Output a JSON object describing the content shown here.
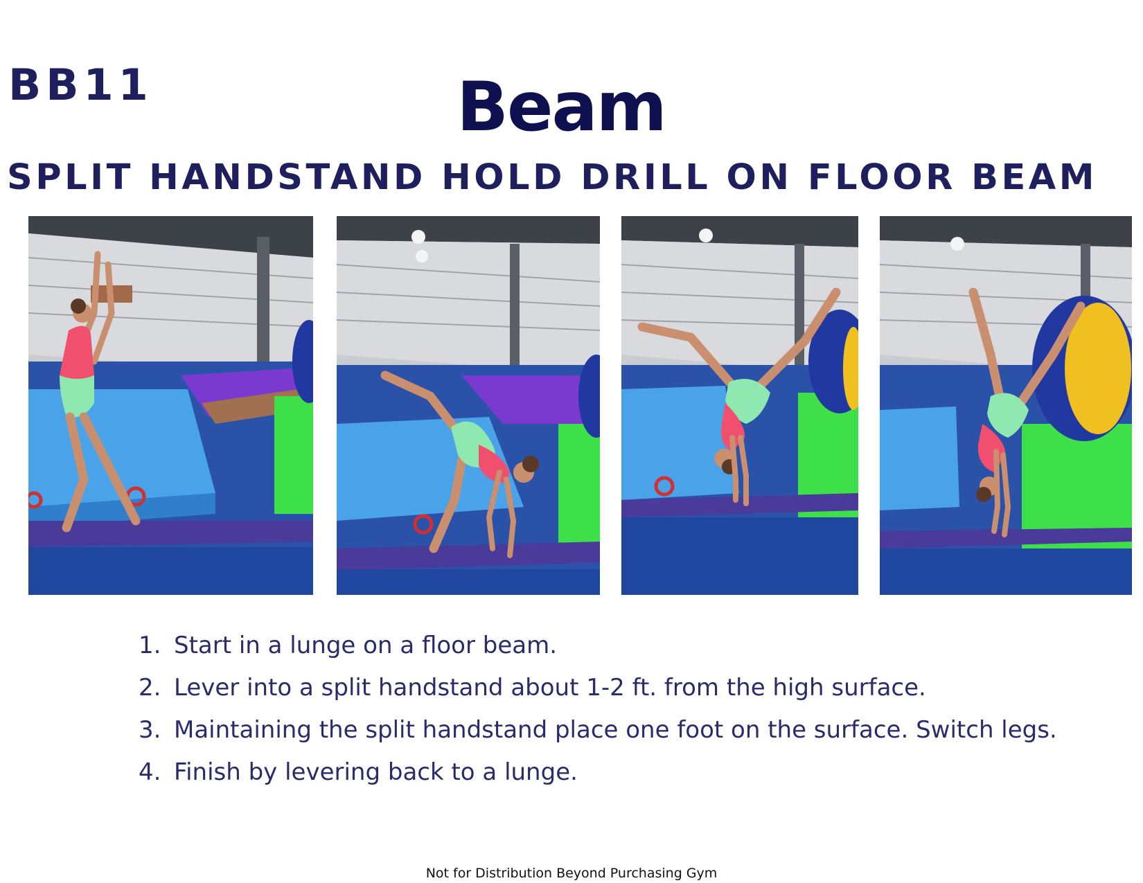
{
  "header": {
    "code": "BB11",
    "title": "Beam",
    "subtitle": "SPLIT HANDSTAND HOLD DRILL ON FLOOR BEAM"
  },
  "photos": [
    {
      "step": "lunge"
    },
    {
      "step": "lever"
    },
    {
      "step": "split handstand"
    },
    {
      "step": "foot on surface"
    }
  ],
  "steps": [
    {
      "num": "1.",
      "text": "Start in a lunge on a floor beam."
    },
    {
      "num": "2.",
      "text": "Lever into a split handstand about 1-2 ft. from the high surface."
    },
    {
      "num": "3.",
      "text": "Maintaining the split handstand place one foot on the surface. Switch legs."
    },
    {
      "num": "4.",
      "text": "Finish by levering back to a lunge."
    }
  ],
  "footer": {
    "notice": "Not for Distribution Beyond Purchasing Gym"
  },
  "colors": {
    "heading": "#1e1f5c",
    "title": "#0f1050",
    "mat_blue": "#3a8fe0",
    "floor_blue": "#2850a8",
    "beam_purple": "#4a3a9a",
    "block_green": "#3ee04a",
    "leotard_pink": "#f0506e",
    "leotard_green": "#8ee8b0"
  }
}
